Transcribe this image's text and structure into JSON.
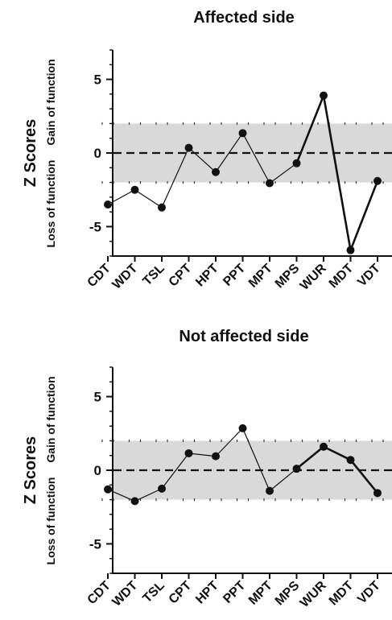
{
  "chart_data": [
    {
      "type": "line",
      "title": "Affected side",
      "ylabel": "Z Scores",
      "ylabel_upper": "Gain of function",
      "ylabel_lower": "Loss of function",
      "categories": [
        "CDT",
        "WDT",
        "TSL",
        "CPT",
        "HPT",
        "PPT",
        "MPT",
        "MPS",
        "WUR",
        "MDT",
        "VDT"
      ],
      "values": [
        -3.5,
        -2.5,
        -3.7,
        0.35,
        -1.3,
        1.35,
        -2.05,
        -0.7,
        3.9,
        -6.6,
        -1.9
      ],
      "ylim": [
        -7,
        7
      ],
      "yticks": [
        5,
        0,
        -5
      ],
      "ytick_labels": [
        "5",
        "0",
        "-5"
      ],
      "normal_band": [
        -2,
        2
      ],
      "reference_line": 0,
      "thick_segments": [
        [
          7,
          8
        ],
        [
          8,
          9
        ],
        [
          9,
          10
        ]
      ]
    },
    {
      "type": "line",
      "title": "Not affected side",
      "ylabel": "Z Scores",
      "ylabel_upper": "Gain of function",
      "ylabel_lower": "Loss of function",
      "categories": [
        "CDT",
        "WDT",
        "TSL",
        "CPT",
        "HPT",
        "PPT",
        "MPT",
        "MPS",
        "WUR",
        "MDT",
        "VDT"
      ],
      "values": [
        -1.3,
        -2.1,
        -1.25,
        1.15,
        0.95,
        2.85,
        -1.4,
        0.1,
        1.6,
        0.7,
        -1.55
      ],
      "ylim": [
        -7,
        7
      ],
      "yticks": [
        5,
        0,
        -5
      ],
      "ytick_labels": [
        "5",
        "0",
        "-5"
      ],
      "normal_band": [
        -2,
        2
      ],
      "reference_line": 0,
      "thick_segments": [
        [
          7,
          8
        ],
        [
          8,
          9
        ],
        [
          9,
          10
        ]
      ]
    }
  ]
}
